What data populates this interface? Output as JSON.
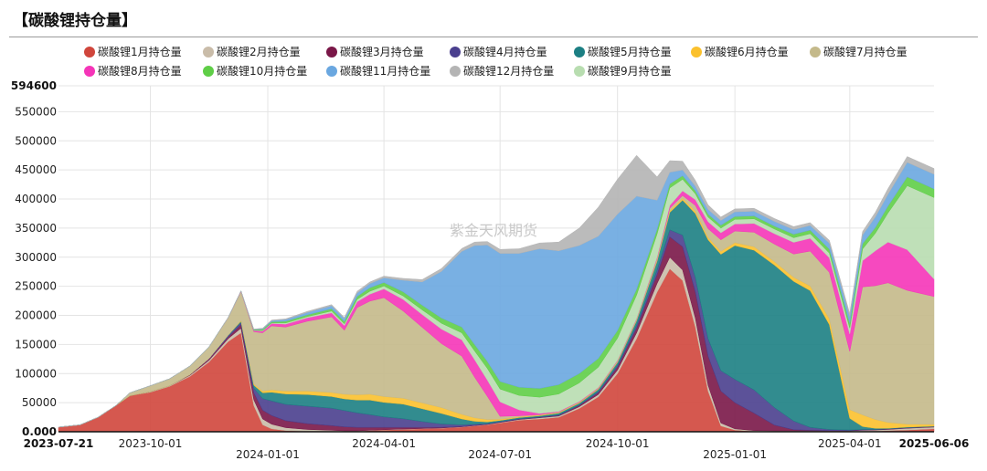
{
  "title": "【碳酸锂持仓量】",
  "watermark": "紫金天风期货",
  "chart_data": {
    "type": "area",
    "stacked": true,
    "grid": true,
    "legend_position": "top",
    "x_start_label": "2023-07-21",
    "x_end_label": "2025-06-06",
    "x_tick_labels": [
      "2023-10-01",
      "2024-01-01",
      "2024-04-01",
      "2024-07-01",
      "2024-10-01",
      "2025-01-01",
      "2025-04-01"
    ],
    "x_range": [
      "2023-07-21",
      "2025-06-06"
    ],
    "y_ticks": [
      "0.000",
      "50000",
      "100000",
      "150000",
      "200000",
      "250000",
      "300000",
      "350000",
      "400000",
      "450000",
      "500000",
      "550000",
      "594600"
    ],
    "ylim": [
      0,
      594600
    ],
    "dates": [
      "2023-07-21",
      "2023-08-07",
      "2023-08-21",
      "2023-09-04",
      "2023-09-15",
      "2023-10-01",
      "2023-10-16",
      "2023-11-01",
      "2023-11-16",
      "2023-12-01",
      "2023-12-11",
      "2023-12-21",
      "2023-12-28",
      "2024-01-04",
      "2024-01-15",
      "2024-02-01",
      "2024-02-20",
      "2024-03-01",
      "2024-03-11",
      "2024-03-21",
      "2024-04-01",
      "2024-04-16",
      "2024-05-01",
      "2024-05-16",
      "2024-06-01",
      "2024-06-11",
      "2024-06-21",
      "2024-07-01",
      "2024-07-16",
      "2024-08-01",
      "2024-08-16",
      "2024-09-01",
      "2024-09-16",
      "2024-10-01",
      "2024-10-16",
      "2024-11-01",
      "2024-11-11",
      "2024-11-21",
      "2024-12-01",
      "2024-12-11",
      "2024-12-21",
      "2025-01-01",
      "2025-01-16",
      "2025-02-01",
      "2025-02-16",
      "2025-03-01",
      "2025-03-16",
      "2025-04-01",
      "2025-04-11",
      "2025-04-21",
      "2025-05-01",
      "2025-05-16",
      "2025-06-06"
    ],
    "series": [
      {
        "name": "碳酸锂1月持仓量",
        "color": "#d0463c",
        "values": [
          8000,
          12000,
          25000,
          45000,
          62000,
          68000,
          78000,
          95000,
          120000,
          155000,
          170000,
          45000,
          12000,
          5000,
          2000,
          1000,
          500,
          500,
          500,
          2000,
          3000,
          4000,
          5000,
          6000,
          8000,
          10000,
          12000,
          15000,
          20000,
          22000,
          25000,
          40000,
          60000,
          100000,
          160000,
          240000,
          280000,
          260000,
          180000,
          70000,
          10000,
          3000,
          1000,
          500,
          500,
          500,
          500,
          500,
          500,
          1000,
          2000,
          3000,
          5000
        ]
      },
      {
        "name": "碳酸锂2月持仓量",
        "color": "#c9bca9",
        "values": [
          0,
          0,
          0,
          0,
          0,
          1000,
          1000,
          2000,
          3000,
          5000,
          8000,
          10000,
          10000,
          8000,
          5000,
          3000,
          2000,
          1000,
          1000,
          500,
          500,
          500,
          500,
          500,
          500,
          500,
          500,
          1000,
          1000,
          2000,
          2000,
          3000,
          4000,
          6000,
          10000,
          15000,
          20000,
          18000,
          15000,
          10000,
          5000,
          2000,
          1000,
          1000,
          1000,
          1000,
          1000,
          1000,
          2000,
          2000,
          2000,
          3000,
          3000
        ]
      },
      {
        "name": "碳酸锂3月持仓量",
        "color": "#7a1748",
        "values": [
          0,
          0,
          0,
          0,
          0,
          0,
          0,
          1000,
          2000,
          3000,
          6000,
          12000,
          15000,
          15000,
          12000,
          10000,
          8000,
          7000,
          6000,
          5000,
          4000,
          3000,
          2000,
          1000,
          500,
          500,
          500,
          500,
          500,
          500,
          1000,
          2000,
          3000,
          5000,
          8000,
          15000,
          35000,
          40000,
          45000,
          50000,
          55000,
          45000,
          30000,
          10000,
          2000,
          1000,
          500,
          500,
          500,
          500,
          500,
          500,
          500
        ]
      },
      {
        "name": "碳酸锂4月持仓量",
        "color": "#4a3f8e",
        "values": [
          0,
          0,
          0,
          0,
          0,
          0,
          0,
          0,
          1000,
          2000,
          4000,
          8000,
          20000,
          25000,
          28000,
          30000,
          30000,
          28000,
          25000,
          22000,
          18000,
          15000,
          10000,
          6000,
          3000,
          2000,
          1000,
          1000,
          1000,
          1000,
          1000,
          1000,
          2000,
          3000,
          5000,
          8000,
          12000,
          20000,
          25000,
          30000,
          35000,
          40000,
          40000,
          30000,
          15000,
          5000,
          2000,
          1000,
          1000,
          500,
          500,
          500,
          500
        ]
      },
      {
        "name": "碳酸锂5月持仓量",
        "color": "#1c7f83",
        "values": [
          0,
          0,
          0,
          0,
          0,
          0,
          0,
          0,
          0,
          1000,
          2000,
          5000,
          10000,
          15000,
          18000,
          20000,
          20000,
          20000,
          22000,
          25000,
          25000,
          25000,
          22000,
          18000,
          10000,
          5000,
          3000,
          2000,
          2000,
          2000,
          3000,
          3000,
          4000,
          5000,
          8000,
          15000,
          30000,
          60000,
          110000,
          170000,
          200000,
          230000,
          240000,
          245000,
          240000,
          235000,
          180000,
          20000,
          5000,
          2000,
          1000,
          1000,
          500
        ]
      },
      {
        "name": "碳酸锂6月持仓量",
        "color": "#fbc12d",
        "values": [
          0,
          0,
          0,
          0,
          0,
          0,
          0,
          0,
          0,
          0,
          1000,
          2000,
          3000,
          4000,
          5000,
          6000,
          7000,
          8000,
          9000,
          10000,
          10000,
          10000,
          10000,
          10000,
          8000,
          6000,
          4000,
          2000,
          1000,
          1000,
          1000,
          1000,
          1000,
          1000,
          1000,
          2000,
          3000,
          3000,
          4000,
          4000,
          5000,
          5000,
          6000,
          6000,
          7000,
          8000,
          10000,
          15000,
          20000,
          15000,
          10000,
          5000,
          3000
        ]
      },
      {
        "name": "碳酸锂7月持仓量",
        "color": "#c4b98a",
        "values": [
          0,
          0,
          0,
          0,
          5000,
          10000,
          12000,
          15000,
          20000,
          30000,
          50000,
          90000,
          100000,
          110000,
          110000,
          120000,
          130000,
          110000,
          150000,
          160000,
          170000,
          150000,
          130000,
          110000,
          100000,
          70000,
          40000,
          5000,
          2000,
          1000,
          1000,
          1000,
          1000,
          2000,
          2000,
          3000,
          4000,
          5000,
          10000,
          15000,
          20000,
          20000,
          25000,
          30000,
          40000,
          60000,
          80000,
          100000,
          220000,
          230000,
          240000,
          230000,
          220000
        ]
      },
      {
        "name": "碳酸锂8月持仓量",
        "color": "#f535b8",
        "values": [
          0,
          0,
          0,
          0,
          0,
          0,
          0,
          0,
          0,
          500,
          1000,
          2000,
          3000,
          4000,
          5000,
          6000,
          7000,
          8000,
          10000,
          12000,
          15000,
          20000,
          22000,
          25000,
          28000,
          30000,
          28000,
          25000,
          10000,
          2000,
          1000,
          1000,
          1000,
          1000,
          1000,
          2000,
          5000,
          8000,
          10000,
          12000,
          12000,
          12000,
          15000,
          18000,
          20000,
          22000,
          25000,
          30000,
          45000,
          60000,
          70000,
          70000,
          30000
        ]
      },
      {
        "name": "碳酸锂9月持仓量",
        "color": "#b8ddb0",
        "values": [
          0,
          0,
          0,
          0,
          0,
          0,
          0,
          0,
          0,
          0,
          0,
          500,
          1000,
          1000,
          2000,
          2000,
          3000,
          3000,
          4000,
          5000,
          5000,
          6000,
          8000,
          10000,
          12000,
          15000,
          20000,
          22000,
          25000,
          28000,
          30000,
          32000,
          35000,
          38000,
          40000,
          40000,
          30000,
          20000,
          10000,
          8000,
          8000,
          8000,
          8000,
          8000,
          8000,
          8000,
          8000,
          10000,
          20000,
          30000,
          50000,
          110000,
          140000
        ]
      },
      {
        "name": "碳酸锂10月持仓量",
        "color": "#5fce47",
        "values": [
          0,
          0,
          0,
          0,
          0,
          0,
          0,
          0,
          0,
          0,
          0,
          1000,
          2000,
          2000,
          3000,
          3000,
          4000,
          4000,
          5000,
          6000,
          6000,
          7000,
          8000,
          9000,
          10000,
          11000,
          12000,
          13000,
          14000,
          15000,
          16000,
          16000,
          15000,
          13000,
          10000,
          8000,
          7000,
          6000,
          5000,
          5000,
          5000,
          5000,
          5000,
          5000,
          6000,
          6000,
          7000,
          8000,
          9000,
          10000,
          12000,
          15000,
          15000
        ]
      },
      {
        "name": "碳酸锂11月持仓量",
        "color": "#6aa7e0",
        "values": [
          0,
          0,
          0,
          0,
          0,
          0,
          0,
          0,
          0,
          0,
          0,
          500,
          1000,
          2000,
          3000,
          4000,
          5000,
          5000,
          6000,
          7000,
          8000,
          20000,
          40000,
          80000,
          130000,
          170000,
          200000,
          220000,
          230000,
          240000,
          230000,
          220000,
          210000,
          200000,
          160000,
          50000,
          20000,
          10000,
          8000,
          8000,
          8000,
          8000,
          8000,
          8000,
          8000,
          8000,
          10000,
          12000,
          15000,
          18000,
          20000,
          25000,
          25000
        ]
      },
      {
        "name": "碳酸锂12月持仓量",
        "color": "#b4b4b4",
        "values": [
          0,
          0,
          0,
          0,
          0,
          0,
          0,
          0,
          0,
          0,
          0,
          500,
          1000,
          1000,
          1000,
          2000,
          2000,
          2000,
          3000,
          3000,
          3000,
          3000,
          4000,
          5000,
          5000,
          6000,
          6000,
          7000,
          8000,
          10000,
          15000,
          30000,
          50000,
          60000,
          70000,
          40000,
          20000,
          15000,
          10000,
          8000,
          6000,
          5000,
          5000,
          5000,
          5000,
          5000,
          5000,
          5000,
          6000,
          8000,
          10000,
          10000,
          10000
        ]
      }
    ]
  },
  "legend_order": [
    0,
    1,
    2,
    3,
    4,
    5,
    6,
    7,
    9,
    10,
    11,
    8
  ]
}
